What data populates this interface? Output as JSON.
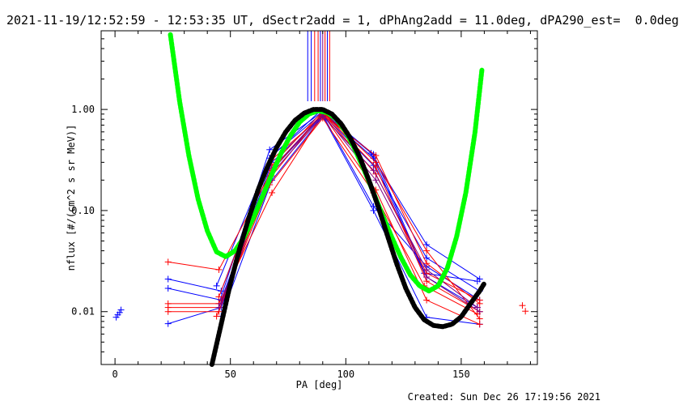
{
  "title": "2021-11-19/12:52:59 - 12:53:35 UT, dSectr2add = 1, dPhAng2add = 11.0deg, dPA290_est=  0.0deg",
  "footer": "Created: Sun Dec 26 17:19:56 2021",
  "chart_data": {
    "type": "scatter",
    "xlabel": "PA [deg]",
    "ylabel": "nflux [#/(cm^2 s sr MeV)]",
    "xlim": [
      -6,
      183
    ],
    "ylim": [
      0.003,
      6
    ],
    "yscale": "log",
    "grid": false,
    "xticks": [
      0,
      50,
      100,
      150
    ],
    "xtick_labels": [
      "0",
      "50",
      "100",
      "150"
    ],
    "yticks": [
      0.01,
      0.1,
      1.0
    ],
    "ytick_labels": [
      "0.01",
      "0.10",
      "1.00"
    ],
    "colors": {
      "blue": "#0000ff",
      "red": "#ff0000",
      "green": "#00ff00",
      "black": "#000000",
      "purple": "#800080"
    },
    "marker_lines_x": [
      83.5,
      85,
      86.5,
      88,
      89,
      90,
      91,
      92,
      93
    ],
    "marker_line_colors": [
      "blue",
      "blue",
      "red",
      "red",
      "blue",
      "purple",
      "red",
      "blue",
      "red"
    ],
    "series": [
      {
        "color": "blue",
        "x": [
          23,
          46,
          68,
          90,
          112,
          135,
          158
        ],
        "y": [
          0.021,
          0.016,
          0.35,
          0.93,
          0.33,
          0.046,
          0.021
        ]
      },
      {
        "color": "blue",
        "x": [
          23,
          46,
          68,
          90,
          112,
          135,
          158
        ],
        "y": [
          0.017,
          0.013,
          0.3,
          0.9,
          0.28,
          0.034,
          0.016
        ]
      },
      {
        "color": "blue",
        "x": [
          23,
          46,
          68,
          90,
          112,
          135,
          158
        ],
        "y": [
          0.0076,
          0.011,
          0.25,
          0.88,
          0.11,
          0.028,
          0.013
        ]
      },
      {
        "color": "blue",
        "x": [
          45,
          67,
          90,
          112,
          135,
          157
        ],
        "y": [
          0.012,
          0.4,
          0.95,
          0.36,
          0.022,
          0.011
        ]
      },
      {
        "color": "blue",
        "x": [
          46,
          68,
          90,
          112,
          135,
          158
        ],
        "y": [
          0.009,
          0.2,
          0.85,
          0.1,
          0.0088,
          0.0075
        ]
      },
      {
        "color": "blue",
        "x": [
          44,
          67,
          89,
          111,
          134,
          157
        ],
        "y": [
          0.018,
          0.33,
          0.97,
          0.37,
          0.024,
          0.02
        ]
      },
      {
        "color": "red",
        "x": [
          23,
          45,
          68,
          90,
          113,
          135,
          158
        ],
        "y": [
          0.031,
          0.026,
          0.25,
          0.92,
          0.23,
          0.024,
          0.013
        ]
      },
      {
        "color": "red",
        "x": [
          23,
          45,
          68,
          90,
          113,
          135,
          158
        ],
        "y": [
          0.012,
          0.012,
          0.15,
          0.9,
          0.16,
          0.013,
          0.0075
        ]
      },
      {
        "color": "red",
        "x": [
          23,
          45,
          68,
          90,
          113,
          135,
          158
        ],
        "y": [
          0.011,
          0.011,
          0.22,
          0.94,
          0.27,
          0.02,
          0.01
        ]
      },
      {
        "color": "red",
        "x": [
          23,
          45,
          68,
          90,
          113,
          135,
          158
        ],
        "y": [
          0.01,
          0.01,
          0.28,
          0.96,
          0.3,
          0.04,
          0.0085
        ]
      },
      {
        "color": "red",
        "x": [
          45,
          68,
          90,
          113,
          135,
          158
        ],
        "y": [
          0.014,
          0.32,
          0.88,
          0.35,
          0.03,
          0.012
        ]
      },
      {
        "color": "red",
        "x": [
          44,
          67,
          90,
          112,
          134,
          157
        ],
        "y": [
          0.009,
          0.18,
          0.82,
          0.15,
          0.018,
          0.0095
        ]
      },
      {
        "color": "purple",
        "x": [
          46,
          68,
          90,
          113,
          135,
          158
        ],
        "y": [
          0.012,
          0.26,
          0.9,
          0.2,
          0.022,
          0.01
        ]
      },
      {
        "color": "purple",
        "x": [
          45,
          67,
          90,
          112,
          135,
          157
        ],
        "y": [
          0.011,
          0.22,
          0.86,
          0.25,
          0.026,
          0.011
        ]
      }
    ],
    "isolated_points": [
      {
        "color": "blue",
        "x": 0.5,
        "y": 0.0088
      },
      {
        "color": "blue",
        "x": 1.2,
        "y": 0.0093
      },
      {
        "color": "blue",
        "x": 2.0,
        "y": 0.0098
      },
      {
        "color": "blue",
        "x": 2.6,
        "y": 0.0104
      },
      {
        "color": "red",
        "x": 176.5,
        "y": 0.0115
      },
      {
        "color": "red",
        "x": 177.8,
        "y": 0.0101
      }
    ],
    "fits": [
      {
        "color": "green",
        "x": [
          24,
          28,
          32,
          36,
          40,
          44,
          48,
          52,
          56,
          60,
          64,
          68,
          72,
          76,
          80,
          84,
          88,
          92,
          96,
          100,
          104,
          108,
          112,
          116,
          120,
          124,
          128,
          132,
          136,
          140,
          144,
          148,
          152,
          156,
          159
        ],
        "y": [
          5.5,
          1.2,
          0.35,
          0.13,
          0.063,
          0.039,
          0.035,
          0.04,
          0.055,
          0.085,
          0.14,
          0.23,
          0.37,
          0.55,
          0.75,
          0.9,
          0.97,
          0.93,
          0.8,
          0.6,
          0.4,
          0.25,
          0.15,
          0.089,
          0.054,
          0.034,
          0.023,
          0.018,
          0.016,
          0.018,
          0.027,
          0.055,
          0.15,
          0.6,
          2.5
        ]
      },
      {
        "color": "black",
        "x": [
          42,
          46,
          50,
          54,
          58,
          62,
          66,
          70,
          74,
          78,
          82,
          86,
          90,
          94,
          98,
          102,
          106,
          110,
          114,
          118,
          122,
          126,
          130,
          134,
          138,
          142,
          146,
          150,
          154,
          158,
          160
        ],
        "y": [
          0.0026,
          0.0075,
          0.019,
          0.042,
          0.085,
          0.16,
          0.27,
          0.42,
          0.6,
          0.78,
          0.92,
          1.0,
          1.0,
          0.9,
          0.72,
          0.52,
          0.34,
          0.2,
          0.11,
          0.057,
          0.03,
          0.017,
          0.011,
          0.0083,
          0.0073,
          0.0071,
          0.0075,
          0.0089,
          0.012,
          0.016,
          0.019
        ]
      }
    ]
  }
}
